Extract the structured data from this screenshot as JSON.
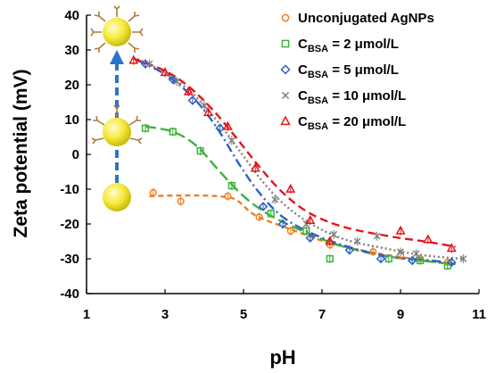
{
  "chart_data": {
    "type": "scatter",
    "title": "",
    "xlabel": "pH",
    "ylabel": "Zeta potential (mV)",
    "xlim": [
      1,
      11
    ],
    "ylim": [
      -40,
      40
    ],
    "xticks": [
      1,
      3,
      5,
      7,
      9,
      11
    ],
    "yticks": [
      40,
      30,
      20,
      10,
      0,
      -10,
      -20,
      -30,
      -40
    ],
    "grid": false,
    "legend_position": "top-right",
    "series": [
      {
        "name": "Unconjugated AgNPs",
        "marker": "circle",
        "color": "#f07f22",
        "dash": "6,4",
        "points": [
          [
            2.7,
            -11
          ],
          [
            3.4,
            -13.5
          ],
          [
            4.6,
            -12
          ],
          [
            5.4,
            -18
          ],
          [
            6.2,
            -22
          ],
          [
            7.2,
            -26
          ],
          [
            8.3,
            -28
          ],
          [
            9.0,
            -29
          ],
          [
            9.5,
            -30
          ],
          [
            10.2,
            -31
          ]
        ],
        "fit": [
          [
            2.6,
            -12
          ],
          [
            3.5,
            -11.8
          ],
          [
            4.3,
            -12
          ],
          [
            4.8,
            -13
          ],
          [
            5.3,
            -17.5
          ],
          [
            6.2,
            -21.5
          ],
          [
            7.2,
            -25.5
          ],
          [
            8.3,
            -28.2
          ],
          [
            9.3,
            -30
          ],
          [
            10.3,
            -31.5
          ]
        ]
      },
      {
        "name": "C_BSA = 2 μmol/L",
        "marker": "square",
        "color": "#3db33d",
        "dash": "12,5",
        "points": [
          [
            2.5,
            7.5
          ],
          [
            3.2,
            6.5
          ],
          [
            3.9,
            1
          ],
          [
            4.7,
            -9
          ],
          [
            5.7,
            -17
          ],
          [
            6.6,
            -22
          ],
          [
            7.2,
            -30
          ],
          [
            8.7,
            -30
          ],
          [
            9.5,
            -30.5
          ],
          [
            10.2,
            -32
          ]
        ],
        "fit": [
          [
            2.5,
            8
          ],
          [
            3.2,
            6.5
          ],
          [
            3.8,
            2.5
          ],
          [
            4.4,
            -5
          ],
          [
            5.0,
            -12
          ],
          [
            5.6,
            -17
          ],
          [
            6.4,
            -21.5
          ],
          [
            7.4,
            -26
          ],
          [
            8.5,
            -29
          ],
          [
            9.5,
            -30.5
          ],
          [
            10.3,
            -31.5
          ]
        ]
      },
      {
        "name": "C_BSA = 5 μmol/L",
        "marker": "diamond",
        "color": "#2e5fc9",
        "dash": "10,4,2,4",
        "points": [
          [
            2.5,
            26
          ],
          [
            3.2,
            21.5
          ],
          [
            3.7,
            15.5
          ],
          [
            4.4,
            7.5
          ],
          [
            5.5,
            -15
          ],
          [
            6.0,
            -20
          ],
          [
            6.7,
            -24
          ],
          [
            7.7,
            -27.5
          ],
          [
            8.5,
            -30
          ],
          [
            9.3,
            -30.5
          ],
          [
            10.3,
            -31
          ]
        ],
        "fit": [
          [
            2.3,
            27
          ],
          [
            3.0,
            23
          ],
          [
            3.7,
            16.5
          ],
          [
            4.3,
            8
          ],
          [
            4.9,
            -3
          ],
          [
            5.4,
            -11
          ],
          [
            6.0,
            -18
          ],
          [
            6.8,
            -23
          ],
          [
            7.8,
            -27
          ],
          [
            8.8,
            -29.5
          ],
          [
            9.8,
            -30.5
          ],
          [
            10.4,
            -31.5
          ]
        ]
      },
      {
        "name": "C_BSA = 10 μmol/L",
        "marker": "x",
        "color": "#7f7f7f",
        "dash": "2,3",
        "points": [
          [
            2.6,
            26
          ],
          [
            3.3,
            21
          ],
          [
            4.0,
            14
          ],
          [
            4.7,
            4
          ],
          [
            5.8,
            -13
          ],
          [
            6.6,
            -20
          ],
          [
            7.3,
            -23
          ],
          [
            7.9,
            -25
          ],
          [
            8.4,
            -23.5
          ],
          [
            9.0,
            -28
          ],
          [
            9.4,
            -28.5
          ],
          [
            10.6,
            -30
          ]
        ],
        "fit": [
          [
            2.3,
            27.5
          ],
          [
            3.0,
            23.5
          ],
          [
            3.7,
            17.5
          ],
          [
            4.3,
            10
          ],
          [
            4.9,
            1
          ],
          [
            5.5,
            -8
          ],
          [
            6.1,
            -15
          ],
          [
            6.8,
            -20.5
          ],
          [
            7.6,
            -24.5
          ],
          [
            8.6,
            -27
          ],
          [
            9.6,
            -29
          ],
          [
            10.6,
            -30
          ]
        ]
      },
      {
        "name": "C_BSA = 20 μmol/L",
        "marker": "triangle",
        "color": "#e4161b",
        "dash": "9,5",
        "points": [
          [
            2.2,
            27
          ],
          [
            3.0,
            23.5
          ],
          [
            3.6,
            18
          ],
          [
            4.1,
            12
          ],
          [
            4.6,
            8
          ],
          [
            5.3,
            -4
          ],
          [
            6.2,
            -10
          ],
          [
            6.7,
            -19
          ],
          [
            7.2,
            -25
          ],
          [
            9.0,
            -22
          ],
          [
            9.7,
            -24.5
          ],
          [
            10.3,
            -27
          ]
        ],
        "fit": [
          [
            2.2,
            27.5
          ],
          [
            3.0,
            24
          ],
          [
            3.6,
            19.5
          ],
          [
            4.2,
            13
          ],
          [
            4.8,
            5
          ],
          [
            5.4,
            -3.5
          ],
          [
            6.0,
            -11
          ],
          [
            6.7,
            -17
          ],
          [
            7.6,
            -21
          ],
          [
            8.7,
            -23.5
          ],
          [
            9.6,
            -25
          ],
          [
            10.4,
            -26.5
          ]
        ]
      }
    ]
  },
  "legend": {
    "items": [
      {
        "text": "Unconjugated AgNPs",
        "base": "",
        "sub": "",
        "rest": ""
      },
      {
        "text": "",
        "base": "C",
        "sub": "BSA",
        "rest": " = 2 μmol/L"
      },
      {
        "text": "",
        "base": "C",
        "sub": "BSA",
        "rest": " = 5 μmol/L"
      },
      {
        "text": "",
        "base": "C",
        "sub": "BSA",
        "rest": " = 10 μmol/L"
      },
      {
        "text": "",
        "base": "C",
        "sub": "BSA",
        "rest": " = 20 μmol/L"
      }
    ]
  },
  "illustration": {
    "particle_color": "#f6ec3c",
    "arrow_color": "#2d74c8",
    "icons": [
      "bare-nanoparticle-icon",
      "partly-conjugated-nanoparticle-icon",
      "fully-conjugated-nanoparticle-icon",
      "upward-arrow-icon"
    ]
  }
}
